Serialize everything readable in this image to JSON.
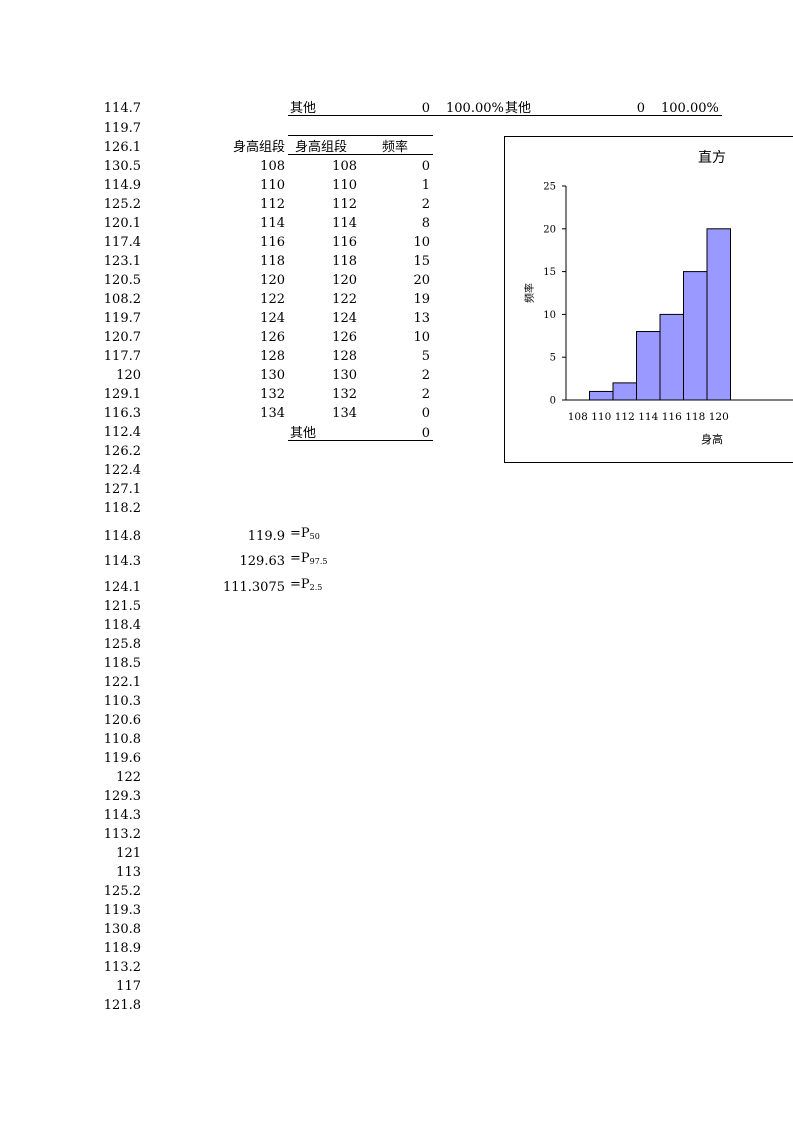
{
  "raw_heights": [
    "114.7",
    "119.7",
    "126.1",
    "130.5",
    "114.9",
    "125.2",
    "120.1",
    "117.4",
    "123.1",
    "120.5",
    "108.2",
    "119.7",
    "120.7",
    "117.7",
    "120",
    "129.1",
    "116.3",
    "112.4",
    "126.2",
    "122.4",
    "127.1",
    "118.2",
    "114.8",
    "114.3",
    "124.1",
    "121.5",
    "118.4",
    "125.8",
    "118.5",
    "122.1",
    "110.3",
    "120.6",
    "110.8",
    "119.6",
    "122",
    "129.3",
    "114.3",
    "113.2",
    "121",
    "113",
    "125.2",
    "119.3",
    "130.8",
    "118.9",
    "113.2",
    "117",
    "121.8"
  ],
  "top_row": {
    "label_other_1": "其他",
    "value_1": "0",
    "pct_1": "100.00%",
    "label_other_2": "其他",
    "value_2": "0",
    "pct_2": "100.00%"
  },
  "bins_label": "身高组段",
  "bins": [
    "108",
    "110",
    "112",
    "114",
    "116",
    "118",
    "120",
    "122",
    "124",
    "126",
    "128",
    "130",
    "132",
    "134"
  ],
  "freq_table": {
    "header_bin": "身高组段",
    "header_freq": "频率",
    "rows": [
      {
        "bin": "108",
        "freq": "0"
      },
      {
        "bin": "110",
        "freq": "1"
      },
      {
        "bin": "112",
        "freq": "2"
      },
      {
        "bin": "114",
        "freq": "8"
      },
      {
        "bin": "116",
        "freq": "10"
      },
      {
        "bin": "118",
        "freq": "15"
      },
      {
        "bin": "120",
        "freq": "20"
      },
      {
        "bin": "122",
        "freq": "19"
      },
      {
        "bin": "124",
        "freq": "13"
      },
      {
        "bin": "126",
        "freq": "10"
      },
      {
        "bin": "128",
        "freq": "5"
      },
      {
        "bin": "130",
        "freq": "2"
      },
      {
        "bin": "132",
        "freq": "2"
      },
      {
        "bin": "134",
        "freq": "0"
      }
    ],
    "other_label": "其他",
    "other_freq": "0"
  },
  "percentiles": [
    {
      "value": "119.9",
      "label_prefix": "=P",
      "label_sub": "50"
    },
    {
      "value": "129.63",
      "label_prefix": "=P",
      "label_sub": "97.5"
    },
    {
      "value": "111.3075",
      "label_prefix": "=P",
      "label_sub": "2.5"
    }
  ],
  "chart_data": {
    "type": "bar",
    "title": "直方",
    "xlabel": "身高",
    "ylabel": "频率",
    "ylim": [
      0,
      25
    ],
    "yticks": [
      "0",
      "5",
      "10",
      "15",
      "20",
      "25"
    ],
    "categories": [
      "108",
      "110",
      "112",
      "114",
      "116",
      "118",
      "120"
    ],
    "values": [
      0,
      1,
      2,
      8,
      10,
      15,
      20
    ],
    "bar_color": "#9999ff",
    "grid": false
  }
}
